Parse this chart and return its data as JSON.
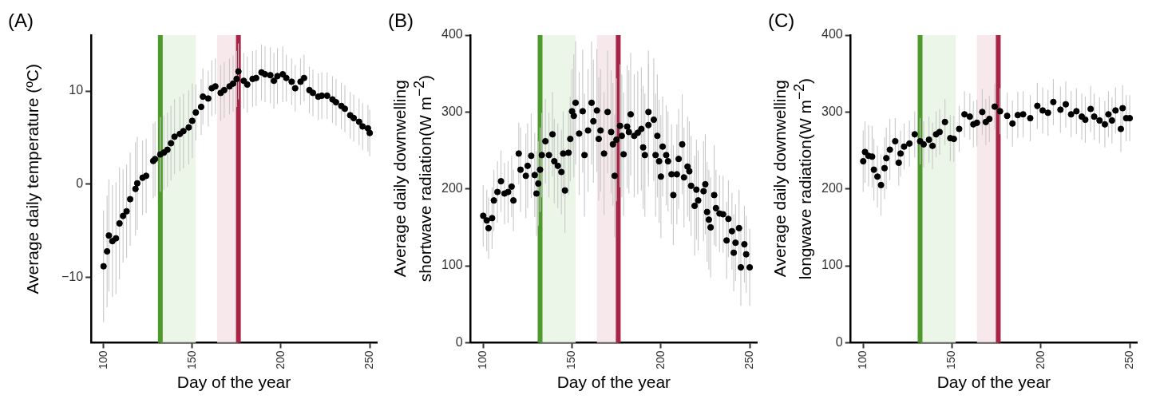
{
  "chart_data": [
    {
      "type": "scatter",
      "title": "(A)",
      "xlabel": "Day of the year",
      "ylabel": "Average daily temperature (ºC)",
      "marker": "circle",
      "grid": false,
      "xlim": [
        93,
        254
      ],
      "xticks": [
        100,
        150,
        200,
        250
      ],
      "ylim": [
        -17,
        16
      ],
      "yticks": [
        {
          "value": -10,
          "label": "−10"
        },
        0,
        10
      ],
      "x": [
        100,
        102,
        103,
        105,
        107,
        109,
        111,
        113,
        115,
        118,
        119,
        122,
        124,
        128,
        129,
        132,
        134,
        136,
        138,
        140,
        143,
        145,
        148,
        150,
        152,
        155,
        156,
        159,
        161,
        163,
        166,
        168,
        171,
        173,
        175,
        176,
        179,
        181,
        184,
        186,
        189,
        191,
        194,
        196,
        198,
        201,
        203,
        206,
        208,
        211,
        213,
        216,
        218,
        221,
        223,
        226,
        229,
        231,
        234,
        236,
        239,
        241,
        244,
        246,
        249,
        250
      ],
      "series": [
        {
          "color": "#000000",
          "values": [
            -8.8,
            -7.2,
            -5.5,
            -6.1,
            -5.8,
            -4.2,
            -3.4,
            -2.9,
            -1.6,
            -0.5,
            0.1,
            0.7,
            0.9,
            2.5,
            2.7,
            3.2,
            3.4,
            3.7,
            4.4,
            5.1,
            5.4,
            5.7,
            6.1,
            6.8,
            7.7,
            8.3,
            9.4,
            9.2,
            10.3,
            10.5,
            9.8,
            10.1,
            10.5,
            10.8,
            11.3,
            12.1,
            11.1,
            10.7,
            11.3,
            11.4,
            12.0,
            11.8,
            11.7,
            11.1,
            11.6,
            11.8,
            11.4,
            11.0,
            10.3,
            11.0,
            11.4,
            10.1,
            9.8,
            9.4,
            9.5,
            9.5,
            9.1,
            8.8,
            8.4,
            8.1,
            7.4,
            7.1,
            6.7,
            6.2,
            6.0,
            5.5
          ],
          "errors": [
            6,
            6,
            6,
            6,
            6,
            6,
            5,
            5,
            5,
            5,
            5,
            4,
            4,
            4,
            4,
            4,
            4,
            4,
            4,
            4,
            4,
            4,
            4,
            4,
            3,
            3,
            3,
            3,
            3,
            3,
            3,
            3,
            3,
            3,
            3,
            3,
            3,
            3,
            3,
            3,
            3,
            3,
            3,
            3,
            3,
            3,
            2.5,
            2.5,
            2.5,
            2.5,
            2.5,
            2.5,
            2.5,
            2.5,
            2.5,
            2.5,
            2.5,
            2.5,
            2.5,
            2.5,
            2.5,
            2.5,
            2.5,
            2.5,
            2.5,
            2.5
          ]
        }
      ],
      "bands": [
        {
          "axis": "x",
          "from": 132,
          "to": 152,
          "color": "#e8f4e4"
        },
        {
          "axis": "x",
          "from": 164,
          "to": 176,
          "color": "#f4e4e8"
        }
      ],
      "ref_lines": [
        {
          "axis": "x",
          "value": 132,
          "color": "#4e9a2c"
        },
        {
          "axis": "x",
          "value": 176,
          "color": "#a72447"
        }
      ]
    },
    {
      "type": "scatter",
      "title": "(B)",
      "xlabel": "Day of the year",
      "ylabel": "Average daily downwelling\nshortwave radiation(W m$^{−2}$)",
      "marker": "circle",
      "grid": false,
      "xlim": [
        93,
        254
      ],
      "xticks": [
        100,
        150,
        200,
        250
      ],
      "ylim": [
        0,
        400
      ],
      "yticks": [
        0,
        100,
        200,
        300,
        400
      ],
      "x": [
        100,
        102,
        103,
        105,
        106,
        108,
        110,
        112,
        114,
        116,
        117,
        120,
        121,
        124,
        125,
        127,
        129,
        130,
        131,
        132,
        133,
        135,
        137,
        139,
        140,
        142,
        144,
        145,
        146,
        148,
        149,
        150,
        151,
        152,
        154,
        156,
        157,
        159,
        161,
        162,
        164,
        165,
        166,
        168,
        170,
        172,
        173,
        174,
        175,
        177,
        178,
        179,
        181,
        182,
        183,
        185,
        187,
        189,
        190,
        191,
        193,
        193,
        196,
        197,
        198,
        199,
        200,
        201,
        203,
        204,
        206,
        207,
        209,
        210,
        212,
        213,
        215,
        216,
        217,
        219,
        220,
        221,
        224,
        225,
        226,
        227,
        228,
        230,
        231,
        233,
        235,
        237,
        238,
        240,
        241,
        242,
        244,
        245,
        247,
        248,
        250
      ],
      "series": [
        {
          "color": "#000000",
          "values": [
            165,
            159,
            149,
            162,
            185,
            196,
            210,
            194,
            196,
            203,
            185,
            246,
            225,
            217,
            230,
            243,
            218,
            194,
            207,
            225,
            244,
            262,
            244,
            271,
            236,
            230,
            222,
            246,
            198,
            247,
            265,
            301,
            295,
            312,
            272,
            301,
            244,
            276,
            312,
            288,
            302,
            265,
            276,
            246,
            300,
            274,
            258,
            217,
            264,
            282,
            269,
            245,
            281,
            274,
            297,
            269,
            273,
            278,
            254,
            244,
            283,
            300,
            290,
            244,
            269,
            236,
            216,
            255,
            244,
            236,
            219,
            192,
            219,
            239,
            258,
            215,
            229,
            223,
            204,
            178,
            199,
            185,
            197,
            206,
            170,
            160,
            150,
            192,
            175,
            168,
            167,
            133,
            161,
            145,
            117,
            130,
            149,
            98,
            128,
            115,
            98
          ],
          "errors": [
            40,
            40,
            40,
            40,
            40,
            40,
            40,
            40,
            40,
            40,
            40,
            40,
            55,
            55,
            55,
            55,
            55,
            55,
            55,
            55,
            55,
            55,
            55,
            55,
            55,
            55,
            55,
            55,
            55,
            55,
            55,
            55,
            80,
            80,
            80,
            80,
            80,
            80,
            80,
            80,
            80,
            80,
            80,
            80,
            80,
            80,
            80,
            80,
            80,
            80,
            80,
            80,
            80,
            80,
            80,
            80,
            80,
            80,
            80,
            80,
            80,
            80,
            80,
            80,
            80,
            80,
            80,
            65,
            65,
            65,
            65,
            65,
            65,
            65,
            65,
            65,
            65,
            65,
            65,
            65,
            65,
            65,
            65,
            65,
            65,
            65,
            65,
            65,
            50,
            50,
            50,
            50,
            50,
            50,
            50,
            50,
            50,
            50,
            50,
            50,
            50
          ]
        }
      ],
      "bands": [
        {
          "axis": "x",
          "from": 132,
          "to": 152,
          "color": "#e8f4e4"
        },
        {
          "axis": "x",
          "from": 164,
          "to": 176,
          "color": "#f4e4e8"
        }
      ],
      "ref_lines": [
        {
          "axis": "x",
          "value": 132,
          "color": "#4e9a2c"
        },
        {
          "axis": "x",
          "value": 176,
          "color": "#a72447"
        }
      ]
    },
    {
      "type": "scatter",
      "title": "(C)",
      "xlabel": "Day of the year",
      "ylabel": "Average daily downwelling\nlongwave radiation(W m$^{−2}$)",
      "marker": "circle",
      "grid": false,
      "xlim": [
        93,
        254
      ],
      "xticks": [
        100,
        150,
        200,
        250
      ],
      "ylim": [
        0,
        400
      ],
      "yticks": [
        0,
        100,
        200,
        300,
        400
      ],
      "x": [
        100,
        101,
        103,
        105,
        106,
        108,
        110,
        112,
        113,
        115,
        118,
        120,
        121,
        123,
        126,
        129,
        132,
        134,
        137,
        139,
        141,
        143,
        146,
        149,
        151,
        154,
        157,
        160,
        162,
        164,
        167,
        169,
        171,
        174,
        177,
        181,
        184,
        187,
        190,
        194,
        198,
        201,
        204,
        207,
        211,
        214,
        217,
        220,
        223,
        225,
        228,
        230,
        233,
        236,
        238,
        240,
        242,
        245,
        246,
        248,
        250
      ],
      "series": [
        {
          "color": "#000000",
          "values": [
            236,
            248,
            243,
            242,
            225,
            216,
            205,
            227,
            240,
            251,
            262,
            234,
            246,
            255,
            259,
            271,
            262,
            258,
            264,
            256,
            271,
            274,
            287,
            266,
            265,
            278,
            297,
            294,
            284,
            286,
            300,
            287,
            291,
            307,
            301,
            295,
            285,
            296,
            297,
            292,
            308,
            302,
            299,
            313,
            303,
            310,
            297,
            301,
            294,
            290,
            304,
            294,
            289,
            284,
            297,
            289,
            302,
            278,
            305,
            292,
            292
          ],
          "errors": [
            40,
            40,
            40,
            40,
            40,
            40,
            40,
            40,
            40,
            40,
            30,
            30,
            30,
            30,
            30,
            30,
            30,
            30,
            30,
            30,
            30,
            30,
            30,
            30,
            30,
            30,
            30,
            30,
            30,
            30,
            30,
            30,
            30,
            30,
            30,
            30,
            30,
            30,
            30,
            30,
            30,
            30,
            30,
            30,
            30,
            30,
            30,
            30,
            30,
            30,
            30,
            30,
            30,
            30,
            30,
            30,
            30,
            30,
            30,
            30,
            30
          ]
        }
      ],
      "bands": [
        {
          "axis": "x",
          "from": 132,
          "to": 152,
          "color": "#e8f4e4"
        },
        {
          "axis": "x",
          "from": 164,
          "to": 176,
          "color": "#f4e4e8"
        }
      ],
      "ref_lines": [
        {
          "axis": "x",
          "value": 132,
          "color": "#4e9a2c"
        },
        {
          "axis": "x",
          "value": 176,
          "color": "#a72447"
        }
      ]
    }
  ]
}
